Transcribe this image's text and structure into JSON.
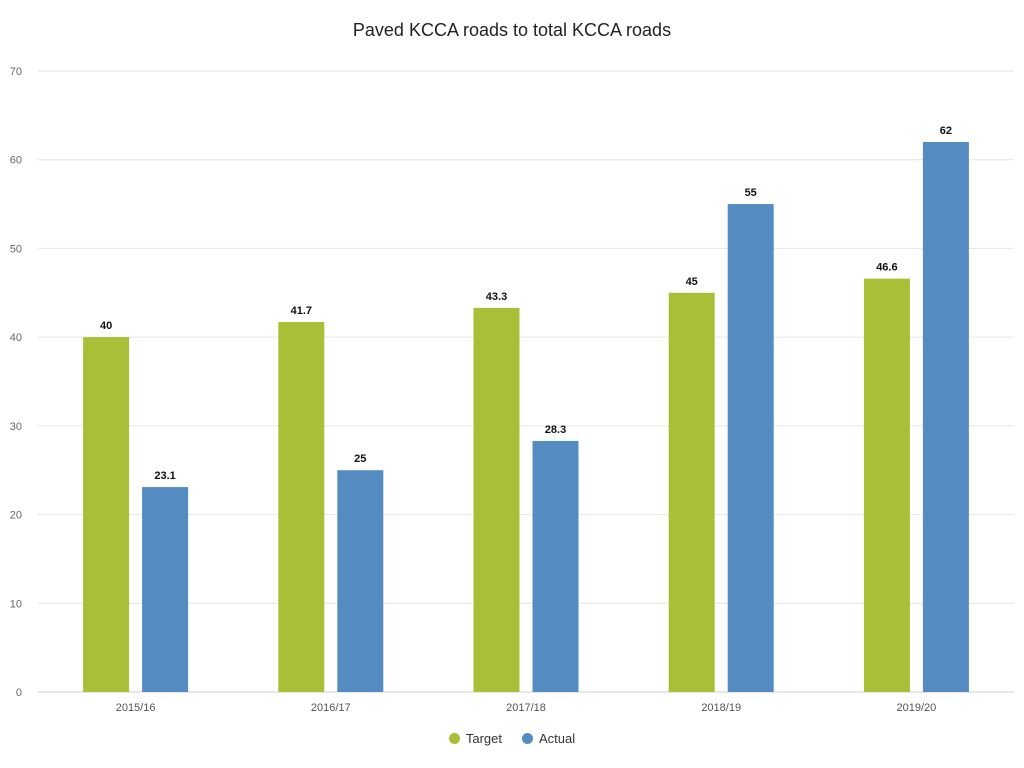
{
  "chart_data": {
    "type": "bar",
    "title": "Paved KCCA roads to total KCCA roads",
    "xlabel": "",
    "ylabel": "",
    "categories": [
      "2015/16",
      "2016/17",
      "2017/18",
      "2018/19",
      "2019/20"
    ],
    "series": [
      {
        "name": "Target",
        "values": [
          40,
          41.7,
          43.3,
          45,
          46.6
        ],
        "color": "#a9bf38"
      },
      {
        "name": "Actual",
        "values": [
          23.1,
          25,
          28.3,
          55,
          62
        ],
        "color": "#548bc1"
      }
    ],
    "ylim": [
      0,
      70
    ],
    "yticks": [
      0,
      10,
      20,
      30,
      40,
      50,
      60,
      70
    ],
    "grid": true,
    "legend_position": "bottom-center",
    "data_labels": true
  }
}
